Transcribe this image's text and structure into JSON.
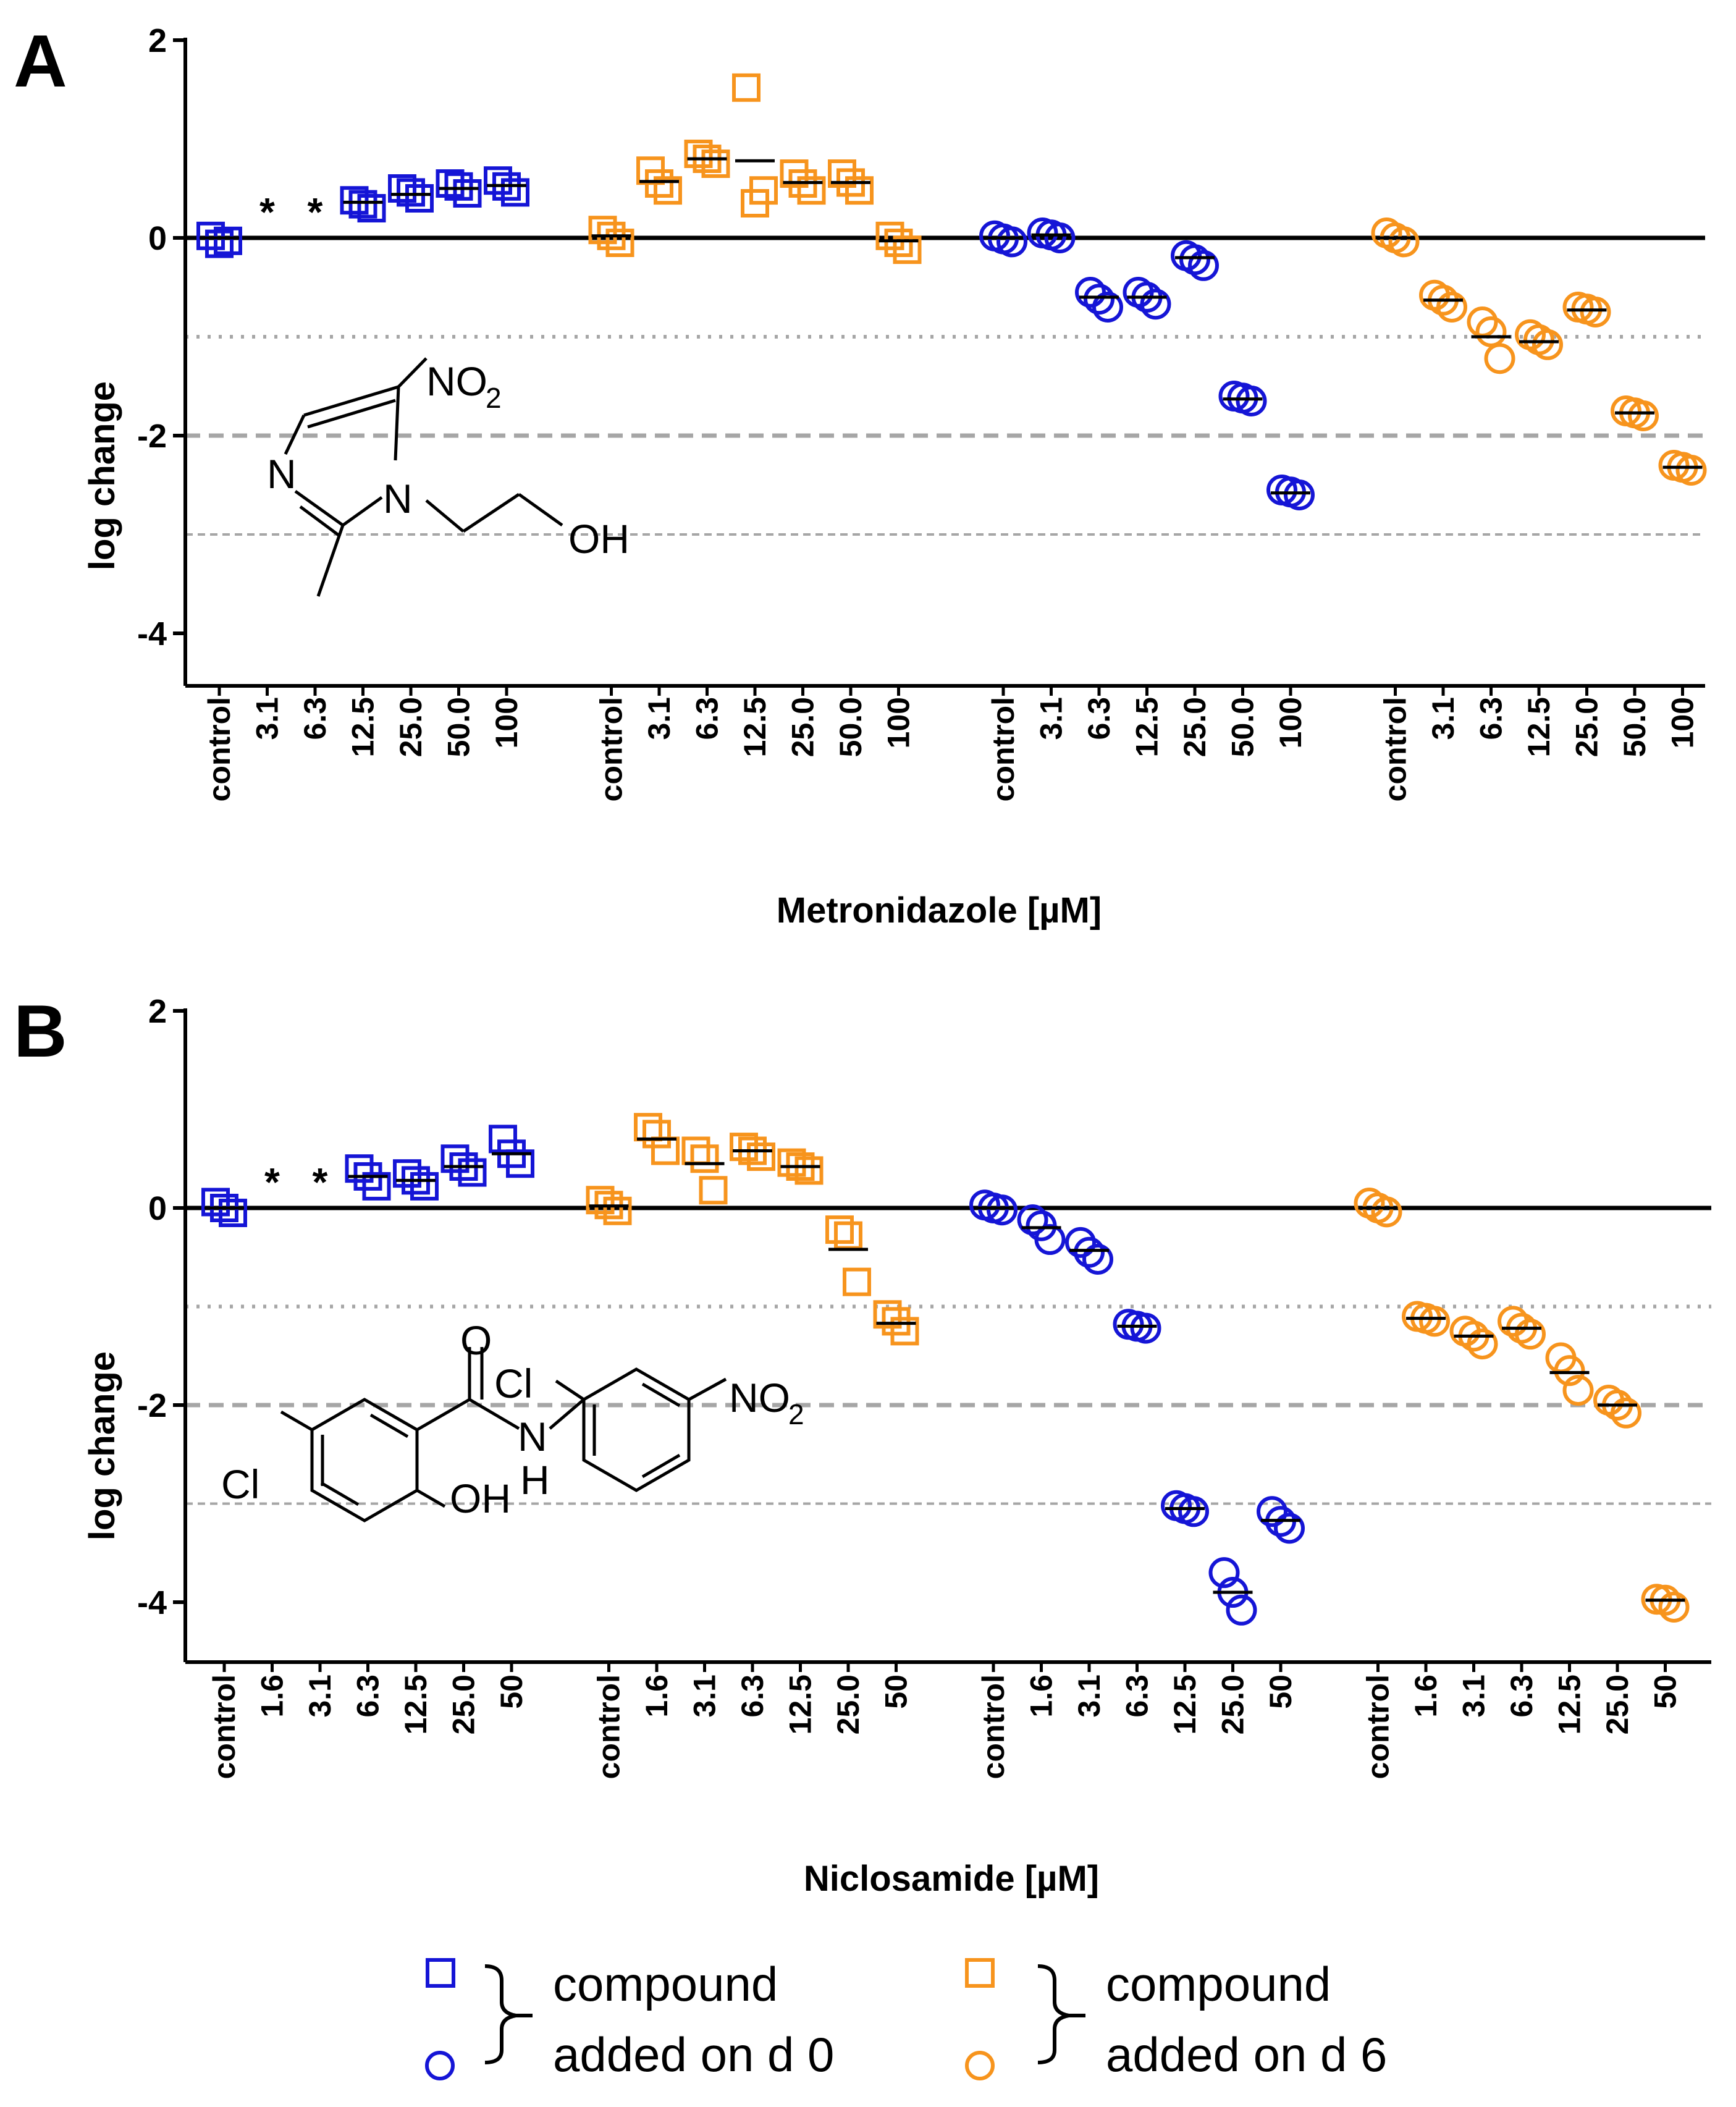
{
  "legend": {
    "group_d0": {
      "line1": "compound",
      "line2": "added on d 0",
      "color": "#1515d6"
    },
    "group_d6": {
      "line1": "compound",
      "line2": "added on d 6",
      "color": "#f7941d"
    },
    "markers": {
      "square": "square-marker",
      "circle": "circle-marker"
    }
  },
  "chart_data": [
    {
      "panel": "A",
      "type": "scatter",
      "xlabel": "Metronidazole [µM]",
      "ylabel": "log change",
      "ylim": [
        -4.5,
        2
      ],
      "yticks": [
        "2",
        "0",
        "-2",
        "-4"
      ],
      "reference_lines": [
        {
          "y": 0,
          "style": "solid"
        },
        {
          "y": -1,
          "style": "dotted"
        },
        {
          "y": -2,
          "style": "dashed"
        },
        {
          "y": -3,
          "style": "fine-dashed"
        }
      ],
      "annotation_star": "*",
      "chemical": {
        "label_nitro": "NO",
        "label_nitro_sub": "2",
        "label_n1": "N",
        "label_n2": "N",
        "label_oh": "OH"
      },
      "groups": [
        {
          "name": "square, added on d 0",
          "marker": "square",
          "color": "#1515d6",
          "categories": [
            "control",
            "3.1",
            "6.3",
            "12.5",
            "25.0",
            "50.0",
            "100"
          ],
          "points": [
            [
              0.02,
              -0.03,
              -0.06
            ],
            null,
            null,
            [
              0.38,
              0.3,
              0.34
            ],
            [
              0.5,
              0.4,
              0.46
            ],
            [
              0.55,
              0.45,
              0.52
            ],
            [
              0.58,
              0.46,
              0.52
            ]
          ],
          "medians": [
            0.0,
            null,
            null,
            0.36,
            0.44,
            0.5,
            0.53
          ],
          "markers_below": [
            "",
            "*",
            "*",
            "",
            "",
            "",
            ""
          ]
        },
        {
          "name": "square, added on d 6",
          "marker": "square",
          "color": "#f7941d",
          "categories": [
            "control",
            "3.1",
            "6.3",
            "12.5",
            "25.0",
            "50.0",
            "100"
          ],
          "points": [
            [
              0.08,
              -0.05,
              0.02
            ],
            [
              0.68,
              0.48,
              0.55
            ],
            [
              0.85,
              0.75,
              0.8
            ],
            [
              1.52,
              0.48,
              0.35
            ],
            [
              0.65,
              0.48,
              0.55
            ],
            [
              0.65,
              0.48,
              0.56
            ],
            [
              0.02,
              -0.12,
              -0.05
            ]
          ],
          "medians": [
            0.02,
            0.57,
            0.8,
            0.78,
            0.56,
            0.56,
            -0.03
          ],
          "markers_below": [
            "",
            "",
            "",
            "",
            "",
            "",
            ""
          ]
        },
        {
          "name": "circle, added on d 0",
          "marker": "circle",
          "color": "#1515d6",
          "categories": [
            "control",
            "3.1",
            "6.3",
            "12.5",
            "25.0",
            "50.0",
            "100"
          ],
          "points": [
            [
              0.02,
              -0.04,
              -0.01
            ],
            [
              0.05,
              0.0,
              0.03
            ],
            [
              -0.55,
              -0.7,
              -0.62
            ],
            [
              -0.55,
              -0.67,
              -0.6
            ],
            [
              -0.18,
              -0.28,
              -0.22
            ],
            [
              -1.6,
              -1.65,
              -1.62
            ],
            [
              -2.55,
              -2.6,
              -2.57
            ]
          ],
          "medians": [
            0.0,
            0.03,
            -0.6,
            -0.6,
            -0.2,
            -1.63,
            -2.58
          ],
          "markers_below": [
            "",
            "",
            "",
            "",
            "",
            "",
            ""
          ]
        },
        {
          "name": "circle, added on d 6",
          "marker": "circle",
          "color": "#f7941d",
          "categories": [
            "control",
            "3.1",
            "6.3",
            "12.5",
            "25.0",
            "50.0",
            "100"
          ],
          "points": [
            [
              0.05,
              -0.04,
              0.0
            ],
            [
              -0.58,
              -0.7,
              -0.63
            ],
            [
              -0.85,
              -1.22,
              -0.95
            ],
            [
              -0.98,
              -1.08,
              -1.03
            ],
            [
              -0.7,
              -0.75,
              -0.72
            ],
            [
              -1.75,
              -1.8,
              -1.77
            ],
            [
              -2.3,
              -2.35,
              -2.32
            ]
          ],
          "medians": [
            0.0,
            -0.63,
            -1.0,
            -1.05,
            -0.73,
            -1.77,
            -2.32
          ],
          "markers_below": [
            "",
            "",
            "",
            "",
            "",
            "",
            ""
          ]
        }
      ]
    },
    {
      "panel": "B",
      "type": "scatter",
      "xlabel": "Niclosamide [µM]",
      "ylabel": "log change",
      "ylim": [
        -4.5,
        2
      ],
      "yticks": [
        "2",
        "0",
        "-2",
        "-4"
      ],
      "reference_lines": [
        {
          "y": 0,
          "style": "solid"
        },
        {
          "y": -1,
          "style": "dotted"
        },
        {
          "y": -2,
          "style": "dashed"
        },
        {
          "y": -3,
          "style": "fine-dashed"
        }
      ],
      "annotation_star": "*",
      "chemical": {
        "label_cl1": "Cl",
        "label_cl2": "Cl",
        "label_o": "O",
        "label_nh_n": "N",
        "label_nh_h": "H",
        "label_oh": "OH",
        "label_nitro": "NO",
        "label_nitro_sub": "2"
      },
      "groups": [
        {
          "name": "square, added on d 0",
          "marker": "square",
          "color": "#1515d6",
          "categories": [
            "control",
            "1.6",
            "3.1",
            "6.3",
            "12.5",
            "25.0",
            "50"
          ],
          "points": [
            [
              0.06,
              -0.05,
              0.0
            ],
            null,
            null,
            [
              0.4,
              0.22,
              0.32
            ],
            [
              0.35,
              0.22,
              0.28
            ],
            [
              0.5,
              0.36,
              0.42
            ],
            [
              0.7,
              0.45,
              0.55
            ]
          ],
          "medians": [
            0.0,
            null,
            null,
            0.32,
            0.28,
            0.42,
            0.55
          ],
          "markers_below": [
            "",
            "*",
            "*",
            "",
            "",
            "",
            ""
          ]
        },
        {
          "name": "square, added on d 6",
          "marker": "square",
          "color": "#f7941d",
          "categories": [
            "control",
            "1.6",
            "3.1",
            "6.3",
            "12.5",
            "25.0",
            "50"
          ],
          "points": [
            [
              0.08,
              -0.03,
              0.03
            ],
            [
              0.82,
              0.58,
              0.75
            ],
            [
              0.58,
              0.18,
              0.5
            ],
            [
              0.62,
              0.52,
              0.58
            ],
            [
              0.46,
              0.38,
              0.42
            ],
            [
              -0.22,
              -0.75,
              -0.28
            ],
            [
              -1.08,
              -1.25,
              -1.15
            ]
          ],
          "medians": [
            0.02,
            0.7,
            0.45,
            0.58,
            0.42,
            -0.42,
            -1.17
          ],
          "markers_below": [
            "",
            "",
            "",
            "",
            "",
            "",
            ""
          ]
        },
        {
          "name": "circle, added on d 0",
          "marker": "circle",
          "color": "#1515d6",
          "categories": [
            "control",
            "1.6",
            "3.1",
            "6.3",
            "12.5",
            "25.0",
            "50"
          ],
          "points": [
            [
              0.03,
              -0.02,
              0.0
            ],
            [
              -0.12,
              -0.32,
              -0.18
            ],
            [
              -0.35,
              -0.52,
              -0.45
            ],
            [
              -1.18,
              -1.22,
              -1.2
            ],
            [
              -3.02,
              -3.08,
              -3.05
            ],
            [
              -3.7,
              -4.08,
              -3.9
            ],
            [
              -3.08,
              -3.25,
              -3.18
            ]
          ],
          "medians": [
            0.0,
            -0.2,
            -0.43,
            -1.2,
            -3.05,
            -3.9,
            -3.17
          ],
          "markers_below": [
            "",
            "",
            "",
            "",
            "",
            "",
            ""
          ]
        },
        {
          "name": "circle, added on d 6",
          "marker": "circle",
          "color": "#f7941d",
          "categories": [
            "control",
            "1.6",
            "3.1",
            "6.3",
            "12.5",
            "25.0",
            "50"
          ],
          "points": [
            [
              0.05,
              -0.04,
              0.0
            ],
            [
              -1.1,
              -1.15,
              -1.12
            ],
            [
              -1.25,
              -1.38,
              -1.3
            ],
            [
              -1.15,
              -1.28,
              -1.22
            ],
            [
              -1.52,
              -1.85,
              -1.65
            ],
            [
              -1.95,
              -2.08,
              -2.0
            ],
            [
              -3.97,
              -4.05,
              -3.98
            ]
          ],
          "medians": [
            0.0,
            -1.12,
            -1.3,
            -1.22,
            -1.67,
            -2.0,
            -3.98
          ],
          "markers_below": [
            "",
            "",
            "",
            "",
            "",
            "",
            ""
          ]
        }
      ]
    }
  ]
}
